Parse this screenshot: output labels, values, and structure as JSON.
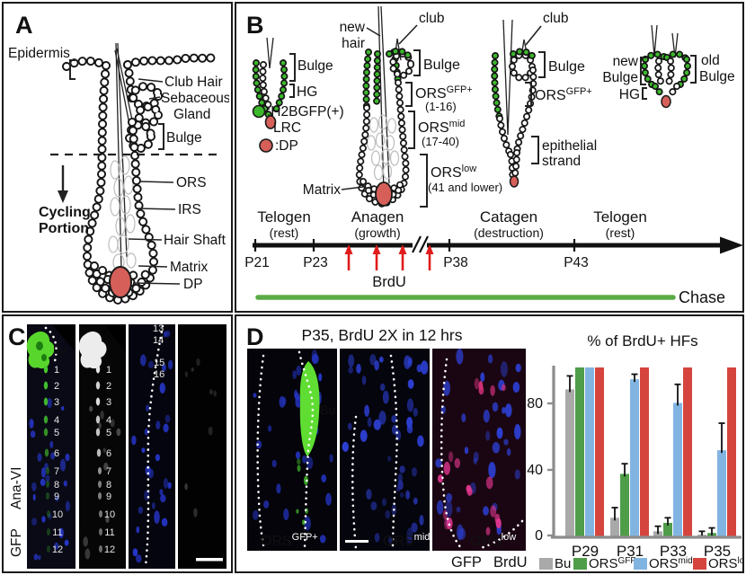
{
  "colors": {
    "lrc_green": "#3cb82c",
    "dp_red": "#d66059",
    "brdu_red": "#e01b1b",
    "chase_green": "#5aab47",
    "gfp_green": "#3fae29"
  },
  "panelA": {
    "letter": "A",
    "labels": {
      "epidermis": "Epidermis",
      "club_hair": "Club Hair",
      "sebaceous": "Sebaceous",
      "gland": "Gland",
      "bulge": "Bulge",
      "ors": "ORS",
      "irs": "IRS",
      "hair_shaft": "Hair Shaft",
      "matrix": "Matrix",
      "dp": "DP",
      "cycling1": "Cycling",
      "cycling2": "Portion"
    }
  },
  "panelB": {
    "letter": "B",
    "telogen1": {
      "bulge": "Bulge",
      "hg": "HG"
    },
    "legend": {
      "lrc1": ":H2BGFP(+)",
      "lrc2": "LRC",
      "dp": ":DP"
    },
    "anagen": {
      "new1": "new",
      "new2": "hair",
      "club": "club",
      "bulge": "Bulge",
      "ors_base": "ORS",
      "ors_sup": "GFP+",
      "ors_range": "(1-16)",
      "mid_base": "ORS",
      "mid_sup": "mid",
      "mid_range": "(17-40)",
      "low_base": "ORS",
      "low_sup": "low",
      "low_range": "(41 and lower)",
      "matrix": "Matrix"
    },
    "catagen": {
      "club": "club",
      "bulge": "Bulge",
      "ors_base": "ORS",
      "ors_sup": "GFP+",
      "strand1": "epithelial",
      "strand2": "strand"
    },
    "telogen2": {
      "new": "new",
      "bulge_l": "Bulge",
      "old": "old",
      "bulge_r": "Bulge",
      "hg": "HG"
    },
    "timeline": {
      "stages": [
        {
          "name": "Telogen",
          "sub": "(rest)"
        },
        {
          "name": "Anagen",
          "sub": "(growth)"
        },
        {
          "name": "Catagen",
          "sub": "(destruction)"
        },
        {
          "name": "Telogen",
          "sub": "(rest)"
        }
      ],
      "ticks": [
        "P21",
        "P23",
        "P38",
        "P43"
      ],
      "brdu": "BrdU",
      "chase": "Chase"
    }
  },
  "panelC": {
    "letter": "C",
    "stain_top": "Ana-VI",
    "stain_bottom": "GFP",
    "bu": "Bu",
    "strip12_numbers": [
      "1",
      "2",
      "3",
      "4",
      "5",
      "6",
      "7",
      "8",
      "9",
      "10",
      "11",
      "12"
    ],
    "strip3_numbers": [
      "13",
      "14",
      "15",
      "16"
    ]
  },
  "panelD": {
    "letter": "D",
    "title": "P35, BrdU 2X in 12 hrs",
    "bu": "Bu",
    "images": [
      {
        "base": "ORS",
        "sup": "GFP+"
      },
      {
        "base": "ORS",
        "sup": "mid"
      },
      {
        "base": "ORS",
        "sup": "low"
      }
    ],
    "gfp": "GFP",
    "brdu": "BrdU"
  },
  "chart_data": {
    "type": "bar",
    "title": "% of BrdU+ HFs",
    "categories": [
      "P29",
      "P31",
      "P33",
      "P35"
    ],
    "series": [
      {
        "name": "Bu",
        "color": "#a9a9a9",
        "values": [
          87,
          11,
          3,
          1
        ],
        "errors": [
          8,
          6,
          3,
          2
        ]
      },
      {
        "name": "ORSGFP+",
        "color": "#4f9d49",
        "values": [
          100,
          37,
          8,
          2
        ],
        "errors": [
          0,
          6,
          3,
          3
        ]
      },
      {
        "name": "ORSmid",
        "color": "#82b4e2",
        "values": [
          100,
          93,
          79,
          51
        ],
        "errors": [
          0,
          3,
          11,
          16
        ]
      },
      {
        "name": "ORSlow",
        "color": "#d5453e",
        "values": [
          100,
          100,
          100,
          100
        ],
        "errors": [
          0,
          0,
          0,
          0
        ]
      }
    ],
    "xlabel": "",
    "ylabel": "",
    "ylim": [
      0,
      100
    ],
    "yticks": [
      "0",
      "40",
      "80"
    ],
    "legend": [
      {
        "base": "Bu",
        "sup": ""
      },
      {
        "base": "ORS",
        "sup": "GFP+"
      },
      {
        "base": "ORS",
        "sup": "mid"
      },
      {
        "base": "ORS",
        "sup": "low"
      }
    ],
    "legend_position": "bottom",
    "grid": false
  }
}
